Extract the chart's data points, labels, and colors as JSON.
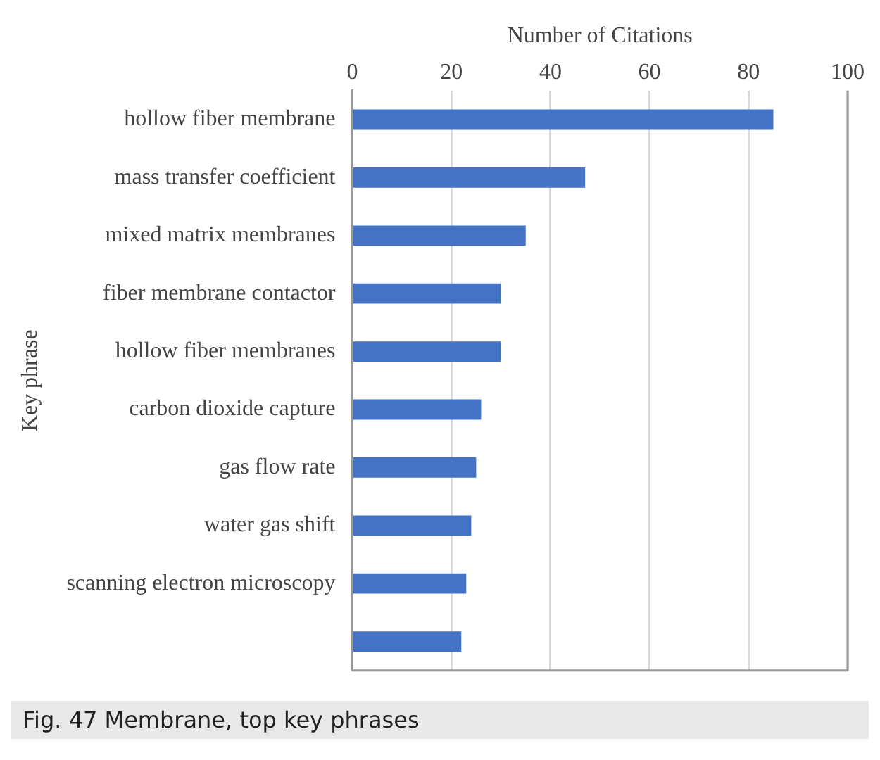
{
  "chart_data": {
    "type": "bar",
    "orientation": "horizontal",
    "xlabel": "Number of Citations",
    "ylabel": "Key phrase",
    "categories": [
      "hollow fiber membrane",
      "mass transfer coefficient",
      "mixed matrix membranes",
      "fiber membrane contactor",
      "hollow fiber membranes",
      "carbon dioxide capture",
      "gas flow rate",
      "water gas shift",
      "scanning electron microscopy",
      null
    ],
    "values": [
      85,
      47,
      35,
      30,
      30,
      26,
      25,
      24,
      23,
      22
    ],
    "color": "#4472c4",
    "xlim": [
      0,
      100
    ],
    "xticks": [
      0,
      20,
      40,
      60,
      80,
      100
    ],
    "grid": "x",
    "legend": false,
    "annotations": [
      "Fig. 47  Membrane, top key phrases"
    ]
  }
}
